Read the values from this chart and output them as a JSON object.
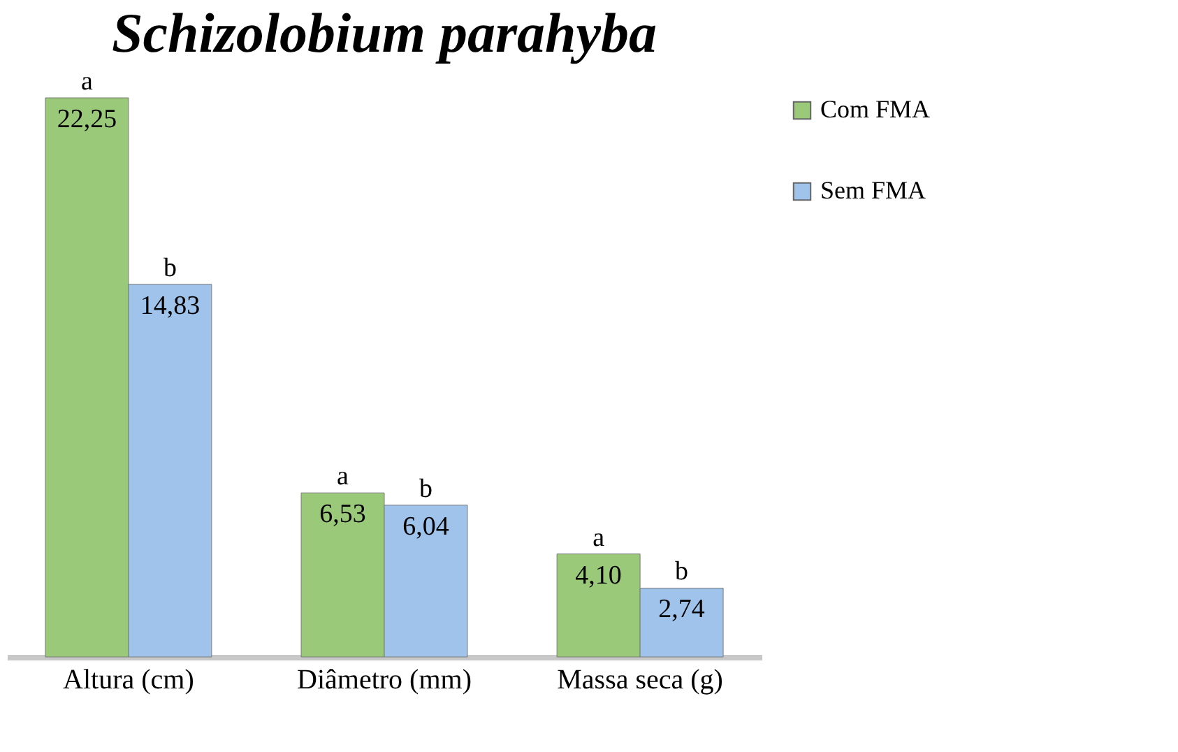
{
  "chart_data": {
    "type": "bar",
    "title": "Schizolobium parahyba",
    "categories": [
      "Altura (cm)",
      "Diâmetro (mm)",
      "Massa seca (g)"
    ],
    "series": [
      {
        "name": "Com FMA",
        "color": "#9bc97a",
        "values": [
          22.25,
          6.53,
          4.1
        ],
        "value_labels": [
          "22,25",
          "6,53",
          "4,10"
        ]
      },
      {
        "name": "Sem FMA",
        "color": "#9fc3ea",
        "values": [
          14.83,
          6.04,
          2.74
        ],
        "value_labels": [
          "14,83",
          "6,04",
          "2,74"
        ]
      }
    ],
    "annotations": [
      {
        "text": "a",
        "x": "Altura (cm)",
        "y": 22.25
      },
      {
        "text": "b",
        "x": "Altura (cm)",
        "y": 14.83
      },
      {
        "text": "a",
        "x": "Diâmetro (mm)",
        "y": 6.53
      },
      {
        "text": "b",
        "x": "Diâmetro (mm)",
        "y": 6.04
      },
      {
        "text": "a",
        "x": "Massa seca (g)",
        "y": 4.1
      },
      {
        "text": "b",
        "x": "Massa seca (g)",
        "y": 2.74
      }
    ],
    "legend": "right",
    "grid": false
  }
}
